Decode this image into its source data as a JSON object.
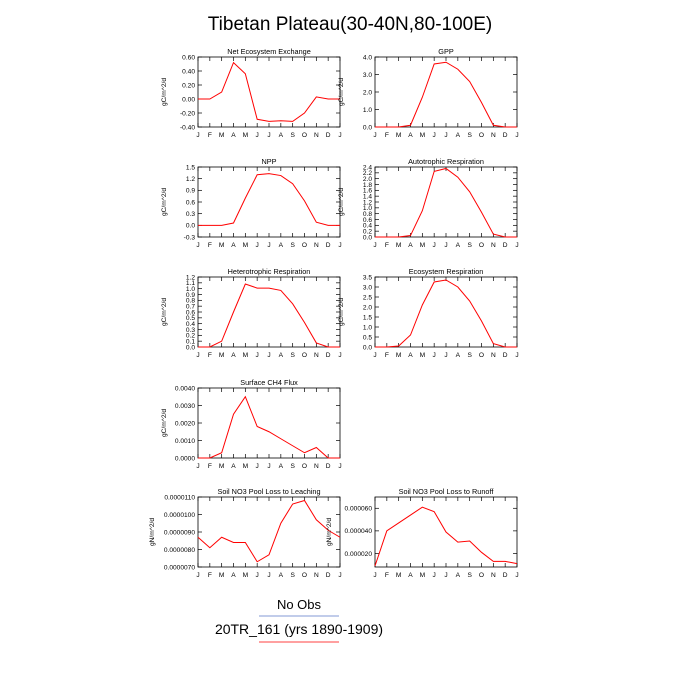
{
  "page": {
    "title": "Tibetan Plateau(30-40N,80-100E)"
  },
  "legend": {
    "obs_label": "No Obs",
    "run_label": "20TR_161 (yrs 1890-1909)",
    "obs_color": "#5a78c8",
    "run_color": "#ff0000"
  },
  "months": [
    "J",
    "F",
    "M",
    "A",
    "M",
    "J",
    "J",
    "A",
    "S",
    "O",
    "N",
    "D",
    "J"
  ],
  "line_color": "#ff0000",
  "chart_data": [
    {
      "type": "line",
      "title": "Net Ecosystem Exchange",
      "ylabel": "gC/m^2/d",
      "ylim": [
        -0.4,
        0.6
      ],
      "yticks": [
        "0.60",
        "0.40",
        "0.20",
        "0.00",
        "-0.20",
        "-0.40"
      ],
      "ytick_values": [
        0.6,
        0.4,
        0.2,
        0.0,
        -0.2,
        -0.4
      ],
      "x": [
        0,
        1,
        2,
        3,
        4,
        5,
        6,
        7,
        8,
        9,
        10,
        11,
        12
      ],
      "values": [
        0.0,
        0.0,
        0.1,
        0.52,
        0.36,
        -0.29,
        -0.32,
        -0.31,
        -0.32,
        -0.2,
        0.03,
        0.0,
        0.0
      ]
    },
    {
      "type": "line",
      "title": "GPP",
      "ylabel": "gC/m^2/d",
      "ylim": [
        0,
        4.0
      ],
      "yticks": [
        "4.0",
        "3.0",
        "2.0",
        "1.0",
        "0.0"
      ],
      "ytick_values": [
        4,
        3,
        2,
        1,
        0
      ],
      "x": [
        0,
        1,
        2,
        3,
        4,
        5,
        6,
        7,
        8,
        9,
        10,
        11,
        12
      ],
      "values": [
        0.0,
        0.0,
        0.0,
        0.1,
        1.7,
        3.6,
        3.7,
        3.3,
        2.6,
        1.4,
        0.1,
        0.0,
        0.0
      ]
    },
    {
      "type": "line",
      "title": "NPP",
      "ylabel": "gC/m^2/d",
      "ylim": [
        -0.3,
        1.5
      ],
      "yticks": [
        "1.5",
        "1.2",
        "0.9",
        "0.6",
        "0.3",
        "0.0",
        "-0.3"
      ],
      "ytick_values": [
        1.5,
        1.2,
        0.9,
        0.6,
        0.3,
        0.0,
        -0.3
      ],
      "x": [
        0,
        1,
        2,
        3,
        4,
        5,
        6,
        7,
        8,
        9,
        10,
        11,
        12
      ],
      "values": [
        0.0,
        0.0,
        0.0,
        0.06,
        0.7,
        1.3,
        1.33,
        1.28,
        1.07,
        0.63,
        0.08,
        0.0,
        0.0
      ]
    },
    {
      "type": "line",
      "title": "Autotrophic Respiration",
      "ylabel": "gC/m^2/d",
      "ylim": [
        0,
        2.4
      ],
      "yticks": [
        "2.4",
        "2.2",
        "2.0",
        "1.8",
        "1.6",
        "1.4",
        "1.2",
        "1.0",
        "0.8",
        "0.6",
        "0.4",
        "0.2",
        "0.0"
      ],
      "ytick_values": [
        2.4,
        2.2,
        2.0,
        1.8,
        1.6,
        1.4,
        1.2,
        1.0,
        0.8,
        0.6,
        0.4,
        0.2,
        0.0
      ],
      "x": [
        0,
        1,
        2,
        3,
        4,
        5,
        6,
        7,
        8,
        9,
        10,
        11,
        12
      ],
      "values": [
        0.0,
        0.0,
        0.0,
        0.05,
        0.9,
        2.25,
        2.35,
        2.05,
        1.55,
        0.85,
        0.1,
        0.0,
        0.0
      ]
    },
    {
      "type": "line",
      "title": "Heterotrophic Respiration",
      "ylabel": "gC/m^2/d",
      "ylim": [
        0,
        1.2
      ],
      "yticks": [
        "1.2",
        "1.1",
        "1.0",
        "0.9",
        "0.8",
        "0.7",
        "0.6",
        "0.5",
        "0.4",
        "0.3",
        "0.2",
        "0.1",
        "0.0"
      ],
      "ytick_values": [
        1.2,
        1.1,
        1.0,
        0.9,
        0.8,
        0.7,
        0.6,
        0.5,
        0.4,
        0.3,
        0.2,
        0.1,
        0.0
      ],
      "x": [
        0,
        1,
        2,
        3,
        4,
        5,
        6,
        7,
        8,
        9,
        10,
        11,
        12
      ],
      "values": [
        0.0,
        0.0,
        0.1,
        0.6,
        1.08,
        1.01,
        1.01,
        0.97,
        0.74,
        0.42,
        0.07,
        0.0,
        0.0
      ]
    },
    {
      "type": "line",
      "title": "Ecosystem Respiration",
      "ylabel": "gC/m^2/d",
      "ylim": [
        0,
        3.5
      ],
      "yticks": [
        "3.5",
        "3.0",
        "2.5",
        "2.0",
        "1.5",
        "1.0",
        "0.5",
        "0.0"
      ],
      "ytick_values": [
        3.5,
        3.0,
        2.5,
        2.0,
        1.5,
        1.0,
        0.5,
        0.0
      ],
      "x": [
        0,
        1,
        2,
        3,
        4,
        5,
        6,
        7,
        8,
        9,
        10,
        11,
        12
      ],
      "values": [
        0.0,
        0.0,
        0.05,
        0.6,
        2.1,
        3.25,
        3.35,
        3.0,
        2.3,
        1.3,
        0.17,
        0.0,
        0.0
      ]
    },
    {
      "type": "line",
      "title": "Surface CH4 Flux",
      "ylabel": "gC/m^2/d",
      "ylim": [
        0,
        0.004
      ],
      "yticks": [
        "0.0040",
        "0.0030",
        "0.0020",
        "0.0010",
        "0.0000"
      ],
      "ytick_values": [
        0.004,
        0.003,
        0.002,
        0.001,
        0.0
      ],
      "x": [
        0,
        1,
        2,
        3,
        4,
        5,
        6,
        7,
        8,
        9,
        10,
        11,
        12
      ],
      "values": [
        0.0,
        0.0,
        0.0003,
        0.0025,
        0.0035,
        0.0018,
        0.0015,
        0.0011,
        0.0007,
        0.0003,
        0.0006,
        0.0,
        0.0
      ]
    },
    null,
    {
      "type": "line",
      "title": "Soil NO3 Pool Loss to Leaching",
      "ylabel": "gN/m^2/d",
      "ylim": [
        7e-06,
        1.1e-05
      ],
      "yticks": [
        "0.0000110",
        "0.0000100",
        "0.0000090",
        "0.0000080",
        "0.0000070"
      ],
      "ytick_values": [
        1.1e-05,
        1e-05,
        9e-06,
        8e-06,
        7e-06
      ],
      "x": [
        0,
        1,
        2,
        3,
        4,
        5,
        6,
        7,
        8,
        9,
        10,
        11,
        12
      ],
      "values": [
        8.7e-06,
        8.1e-06,
        8.7e-06,
        8.4e-06,
        8.4e-06,
        7.3e-06,
        7.7e-06,
        9.5e-06,
        1.06e-05,
        1.08e-05,
        9.7e-06,
        9.1e-06,
        8.7e-06
      ]
    },
    {
      "type": "line",
      "title": "Soil NO3 Pool Loss to Runoff",
      "ylabel": "gN/m^2/d",
      "ylim": [
        8e-06,
        7e-05
      ],
      "yticks": [
        "0.000060",
        "0.000040",
        "0.000020"
      ],
      "ytick_values": [
        6e-05,
        4e-05,
        2e-05
      ],
      "x": [
        0,
        1,
        2,
        3,
        4,
        5,
        6,
        7,
        8,
        9,
        10,
        11,
        12
      ],
      "values": [
        9e-06,
        4e-05,
        4.7e-05,
        5.4e-05,
        6.1e-05,
        5.7e-05,
        3.9e-05,
        3e-05,
        3.1e-05,
        2.1e-05,
        1.3e-05,
        1.3e-05,
        1.1e-05
      ]
    }
  ]
}
